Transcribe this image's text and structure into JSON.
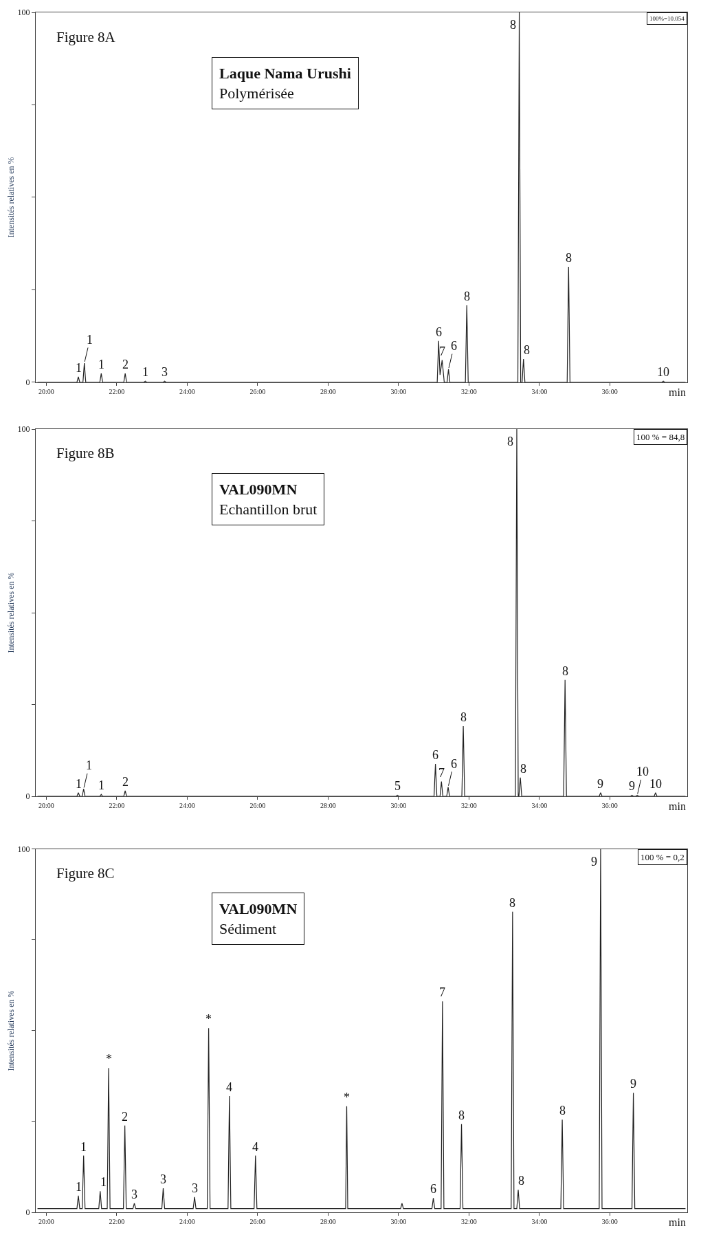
{
  "chart_data": [
    {
      "type": "line",
      "title": "Figure 8A",
      "xlabel": "min",
      "ylabel": "Intensités relatives en %",
      "xlim": [
        19.7,
        38.2
      ],
      "ylim": [
        0,
        100
      ],
      "xticks": [
        {
          "value": 20,
          "label": "20:00"
        },
        {
          "value": 22,
          "label": "22:00"
        },
        {
          "value": 24,
          "label": "24:00"
        },
        {
          "value": 26,
          "label": "26:00"
        },
        {
          "value": 28,
          "label": "28:00"
        },
        {
          "value": 30,
          "label": "30:00"
        },
        {
          "value": 32,
          "label": "32:00"
        },
        {
          "value": 34,
          "label": "34:00"
        },
        {
          "value": 36,
          "label": "36:00"
        }
      ],
      "yticks": [
        0,
        {
          "value": 25,
          "label": null
        },
        {
          "value": 50,
          "label": null
        },
        {
          "value": 75,
          "label": null
        },
        100
      ],
      "marker": "none",
      "line_style": "solid",
      "series": [
        {
          "color": "#222222",
          "x": [
            19.75,
            20.87,
            20.91,
            20.95,
            21.04,
            21.08,
            21.12,
            21.52,
            21.56,
            21.6,
            22.2,
            22.24,
            22.28,
            22.77,
            22.81,
            22.85,
            23.32,
            23.36,
            23.4,
            31.1,
            31.14,
            31.18,
            31.24,
            31.3,
            31.38,
            31.42,
            31.46,
            31.9,
            31.94,
            31.98,
            33.39,
            33.43,
            33.47,
            33.51,
            33.55,
            33.59,
            34.79,
            34.83,
            34.87,
            37.48,
            37.52,
            37.56,
            38.15
          ],
          "values": [
            0,
            0,
            1.5,
            0,
            0,
            5.2,
            0,
            0,
            2.4,
            0,
            0,
            2.4,
            0,
            0,
            0.3,
            0,
            0,
            0.3,
            0,
            0,
            11.2,
            2,
            6,
            0,
            0,
            3.5,
            0,
            0,
            20.8,
            0,
            0,
            100,
            0,
            0,
            6.3,
            0,
            0,
            31.2,
            0,
            0,
            0.3,
            0,
            0
          ]
        }
      ],
      "annotations": [
        "Laque Nama Urushi",
        "Polymérisée",
        "100%=10.054",
        {
          "text": "1",
          "x": 20.91,
          "y": 1.5
        },
        {
          "text": "1",
          "x": 21.08,
          "y": 5.2
        },
        {
          "text": "1",
          "x": 21.56,
          "y": 2.4
        },
        {
          "text": "2",
          "x": 22.24,
          "y": 2.4
        },
        {
          "text": "1",
          "x": 22.81,
          "y": 0.3
        },
        {
          "text": "3",
          "x": 23.36,
          "y": 0.3
        },
        {
          "text": "6",
          "x": 31.14,
          "y": 11.2
        },
        {
          "text": "7",
          "x": 31.24,
          "y": 6
        },
        {
          "text": "6",
          "x": 31.42,
          "y": 3.5
        },
        {
          "text": "8",
          "x": 31.94,
          "y": 20.8
        },
        {
          "text": "8",
          "x": 33.43,
          "y": 100
        },
        {
          "text": "8",
          "x": 33.55,
          "y": 6.3
        },
        {
          "text": "8",
          "x": 34.83,
          "y": 31.2
        },
        {
          "text": "10",
          "x": 37.52,
          "y": 0.3
        }
      ]
    },
    {
      "type": "line",
      "title": "Figure 8B",
      "xlabel": "min",
      "ylabel": "Intensités relatives en %",
      "xlim": [
        19.7,
        38.2
      ],
      "ylim": [
        0,
        100
      ],
      "xticks": [
        {
          "value": 20,
          "label": "20:00"
        },
        {
          "value": 22,
          "label": "22:00"
        },
        {
          "value": 24,
          "label": "24:00"
        },
        {
          "value": 26,
          "label": "26:00"
        },
        {
          "value": 28,
          "label": "28:00"
        },
        {
          "value": 30,
          "label": "30:00"
        },
        {
          "value": 32,
          "label": "32:00"
        },
        {
          "value": 34,
          "label": "34:00"
        },
        {
          "value": 36,
          "label": "36:00"
        }
      ],
      "yticks": [
        0,
        {
          "value": 25,
          "label": null
        },
        {
          "value": 50,
          "label": null
        },
        {
          "value": 75,
          "label": null
        },
        100
      ],
      "marker": "none",
      "line_style": "solid",
      "series": [
        {
          "color": "#222222",
          "x": [
            19.75,
            20.87,
            20.91,
            20.95,
            21.02,
            21.06,
            21.1,
            21.52,
            21.56,
            21.6,
            22.2,
            22.24,
            22.28,
            29.93,
            29.97,
            30.01,
            31.01,
            31.05,
            31.09,
            31.18,
            31.22,
            31.26,
            31.37,
            31.41,
            31.45,
            31.8,
            31.84,
            31.88,
            33.32,
            33.36,
            33.4,
            33.42,
            33.46,
            33.5,
            34.69,
            34.73,
            34.77,
            35.7,
            35.74,
            35.78,
            36.59,
            36.63,
            36.67,
            36.74,
            36.78,
            36.82,
            37.26,
            37.3,
            37.34,
            38.15
          ],
          "values": [
            0,
            0,
            1,
            0,
            0,
            2,
            0,
            0,
            0.5,
            0,
            0,
            1.5,
            0,
            0,
            0.3,
            0,
            0,
            8.8,
            0,
            0,
            4,
            0,
            0,
            2.5,
            0,
            0,
            19.1,
            0,
            0,
            100,
            0,
            0,
            5.1,
            0,
            0,
            31.7,
            0,
            0,
            1,
            0,
            0,
            0.3,
            0,
            0,
            0.3,
            0,
            0,
            1,
            0,
            0
          ]
        }
      ],
      "annotations": [
        "VAL090MN",
        "Echantillon brut",
        "100 % = 84,8",
        {
          "text": "1",
          "x": 20.91,
          "y": 1
        },
        {
          "text": "1",
          "x": 21.06,
          "y": 2
        },
        {
          "text": "1",
          "x": 21.56,
          "y": 0.5
        },
        {
          "text": "2",
          "x": 22.24,
          "y": 1.5
        },
        {
          "text": "5",
          "x": 29.97,
          "y": 0.3
        },
        {
          "text": "6",
          "x": 31.05,
          "y": 8.8
        },
        {
          "text": "7",
          "x": 31.22,
          "y": 4
        },
        {
          "text": "6",
          "x": 31.41,
          "y": 2.5
        },
        {
          "text": "8",
          "x": 31.84,
          "y": 19.1
        },
        {
          "text": "8",
          "x": 33.36,
          "y": 100
        },
        {
          "text": "8",
          "x": 33.46,
          "y": 5.1
        },
        {
          "text": "8",
          "x": 34.73,
          "y": 31.7
        },
        {
          "text": "9",
          "x": 35.74,
          "y": 1
        },
        {
          "text": "9",
          "x": 36.63,
          "y": 0.3
        },
        {
          "text": "10",
          "x": 36.78,
          "y": 0.3
        },
        {
          "text": "10",
          "x": 37.3,
          "y": 1
        }
      ]
    },
    {
      "type": "line",
      "title": "Figure 8C",
      "xlabel": "min",
      "ylabel": "Intensités relatives en %",
      "xlim": [
        19.7,
        38.2
      ],
      "ylim": [
        0,
        100
      ],
      "xticks": [
        {
          "value": 20,
          "label": "20:00"
        },
        {
          "value": 22,
          "label": "22:00"
        },
        {
          "value": 24,
          "label": "24:00"
        },
        {
          "value": 26,
          "label": "26:00"
        },
        {
          "value": 28,
          "label": "28:00"
        },
        {
          "value": 30,
          "label": "30:00"
        },
        {
          "value": 32,
          "label": "32:00"
        },
        {
          "value": 34,
          "label": "34:00"
        },
        {
          "value": 36,
          "label": "36:00"
        }
      ],
      "yticks": [
        0,
        {
          "value": 25,
          "label": null
        },
        {
          "value": 50,
          "label": null
        },
        {
          "value": 75,
          "label": null
        },
        100
      ],
      "marker": "none",
      "line_style": "solid",
      "series": [
        {
          "color": "#222222",
          "x": [
            19.75,
            20.87,
            20.91,
            20.95,
            21.02,
            21.06,
            21.1,
            21.49,
            21.53,
            21.57,
            21.73,
            21.77,
            21.81,
            22.19,
            22.23,
            22.27,
            22.46,
            22.5,
            22.54,
            23.28,
            23.32,
            23.36,
            24.17,
            24.21,
            24.25,
            24.57,
            24.61,
            24.65,
            25.16,
            25.2,
            25.24,
            25.9,
            25.94,
            25.98,
            28.5,
            28.53,
            28.56,
            30.06,
            30.1,
            30.14,
            30.95,
            30.99,
            31.03,
            31.21,
            31.25,
            31.29,
            31.75,
            31.79,
            31.83,
            33.2,
            33.24,
            33.28,
            33.36,
            33.4,
            33.44,
            34.61,
            34.65,
            34.69,
            35.7,
            35.74,
            35.78,
            36.63,
            36.67,
            36.71,
            38.15
          ],
          "values": [
            1,
            1,
            4.6,
            1,
            1,
            15.6,
            1,
            1,
            5.8,
            1,
            1,
            39.7,
            1,
            1,
            23.9,
            1,
            1,
            2.5,
            1,
            1,
            6.6,
            1,
            1,
            4.2,
            1,
            1,
            50.7,
            1,
            1,
            32,
            1,
            1,
            15.6,
            1,
            1,
            29.2,
            1,
            1,
            2.5,
            1,
            1,
            3.9,
            1,
            1,
            58.1,
            1,
            1,
            24.3,
            1,
            1,
            82.8,
            1,
            1,
            6.2,
            1,
            1,
            25.5,
            1,
            1,
            100,
            1,
            1,
            32.9,
            1,
            1
          ]
        }
      ],
      "annotations": [
        "VAL090MN",
        "Sédiment",
        "100 % = 0,2",
        {
          "text": "1",
          "x": 20.91,
          "y": 4.6
        },
        {
          "text": "1",
          "x": 21.06,
          "y": 15.6
        },
        {
          "text": "1",
          "x": 21.53,
          "y": 5.8
        },
        {
          "text": "*",
          "x": 21.77,
          "y": 39.7
        },
        {
          "text": "2",
          "x": 22.23,
          "y": 23.9
        },
        {
          "text": "3",
          "x": 22.5,
          "y": 2.5
        },
        {
          "text": "3",
          "x": 23.32,
          "y": 6.6
        },
        {
          "text": "3",
          "x": 24.21,
          "y": 4.2
        },
        {
          "text": "*",
          "x": 24.61,
          "y": 50.7
        },
        {
          "text": "4",
          "x": 25.2,
          "y": 32
        },
        {
          "text": "4",
          "x": 25.94,
          "y": 15.6
        },
        {
          "text": "*",
          "x": 28.53,
          "y": 29.2
        },
        {
          "text": "6",
          "x": 30.99,
          "y": 3.9
        },
        {
          "text": "7",
          "x": 31.25,
          "y": 58.1
        },
        {
          "text": "8",
          "x": 31.79,
          "y": 24.3
        },
        {
          "text": "8",
          "x": 33.24,
          "y": 82.8
        },
        {
          "text": "8",
          "x": 33.4,
          "y": 6.2
        },
        {
          "text": "8",
          "x": 34.65,
          "y": 25.5
        },
        {
          "text": "9",
          "x": 35.74,
          "y": 100
        },
        {
          "text": "9",
          "x": 36.67,
          "y": 32.9
        }
      ]
    }
  ]
}
